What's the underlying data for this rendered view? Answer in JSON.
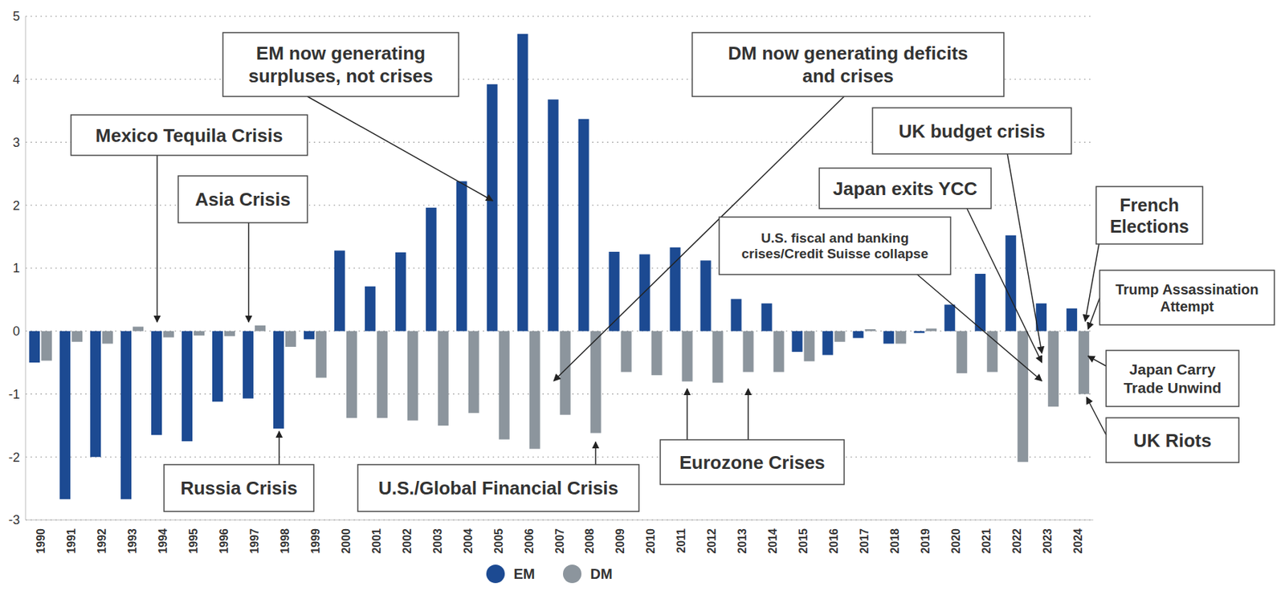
{
  "chart_data": {
    "type": "bar",
    "categories": [
      "1990",
      "1991",
      "1992",
      "1993",
      "1994",
      "1995",
      "1996",
      "1997",
      "1998",
      "1999",
      "2000",
      "2001",
      "2002",
      "2003",
      "2004",
      "2005",
      "2006",
      "2007",
      "2008",
      "2009",
      "2010",
      "2011",
      "2012",
      "2013",
      "2014",
      "2015",
      "2016",
      "2017",
      "2018",
      "2019",
      "2020",
      "2021",
      "2022",
      "2023",
      "2024"
    ],
    "series": [
      {
        "name": "EM",
        "color": "#1c4a92",
        "values": [
          -0.5,
          -2.67,
          -2.0,
          -2.67,
          -1.65,
          -1.75,
          -1.12,
          -1.07,
          -1.55,
          -0.13,
          1.28,
          0.71,
          1.25,
          1.96,
          2.38,
          3.92,
          4.72,
          3.68,
          3.37,
          1.26,
          1.22,
          1.33,
          1.12,
          0.51,
          0.44,
          -0.33,
          -0.38,
          -0.11,
          -0.2,
          -0.03,
          0.42,
          0.91,
          1.52,
          0.44,
          0.36
        ]
      },
      {
        "name": "DM",
        "color": "#8c959d",
        "values": [
          -0.47,
          -0.17,
          -0.2,
          0.07,
          -0.1,
          -0.07,
          -0.08,
          0.09,
          -0.25,
          -0.74,
          -1.38,
          -1.38,
          -1.42,
          -1.5,
          -1.3,
          -1.72,
          -1.87,
          -1.33,
          -1.62,
          -0.65,
          -0.7,
          -0.8,
          -0.82,
          -0.65,
          -0.65,
          -0.48,
          -0.17,
          0.03,
          -0.2,
          0.04,
          -0.67,
          -0.65,
          -2.08,
          -1.2,
          -1.0
        ]
      }
    ],
    "ylim": [
      -3,
      5
    ],
    "yticks": [
      -3,
      -2,
      -1,
      0,
      1,
      2,
      3,
      4,
      5
    ],
    "grid": true,
    "legend": "bottom",
    "annotations": [
      {
        "text": "Mexico Tequila Crisis",
        "x": "1994"
      },
      {
        "text": "Asia Crisis",
        "x": "1997"
      },
      {
        "text": "Russia Crisis",
        "x": "1998"
      },
      {
        "text": "EM now generating\nsurpluses, not crises",
        "x": "2005"
      },
      {
        "text": "DM now generating deficits\nand crises",
        "x": "2007"
      },
      {
        "text": "U.S./Global Financial Crisis",
        "x": "2008"
      },
      {
        "text": "Eurozone Crises",
        "x": [
          "2011",
          "2013"
        ]
      },
      {
        "text": "U.S. fiscal and banking\ncrises/Credit Suisse collapse",
        "x": "2023"
      },
      {
        "text": "Japan exits YCC",
        "x": "2023"
      },
      {
        "text": "UK budget crisis",
        "x": "2023"
      },
      {
        "text": "French\nElections",
        "x": "2024"
      },
      {
        "text": "Trump Assassination\nAttempt",
        "x": "2024"
      },
      {
        "text": "Japan Carry\nTrade Unwind",
        "x": "2024"
      },
      {
        "text": "UK Riots",
        "x": "2024"
      }
    ]
  }
}
